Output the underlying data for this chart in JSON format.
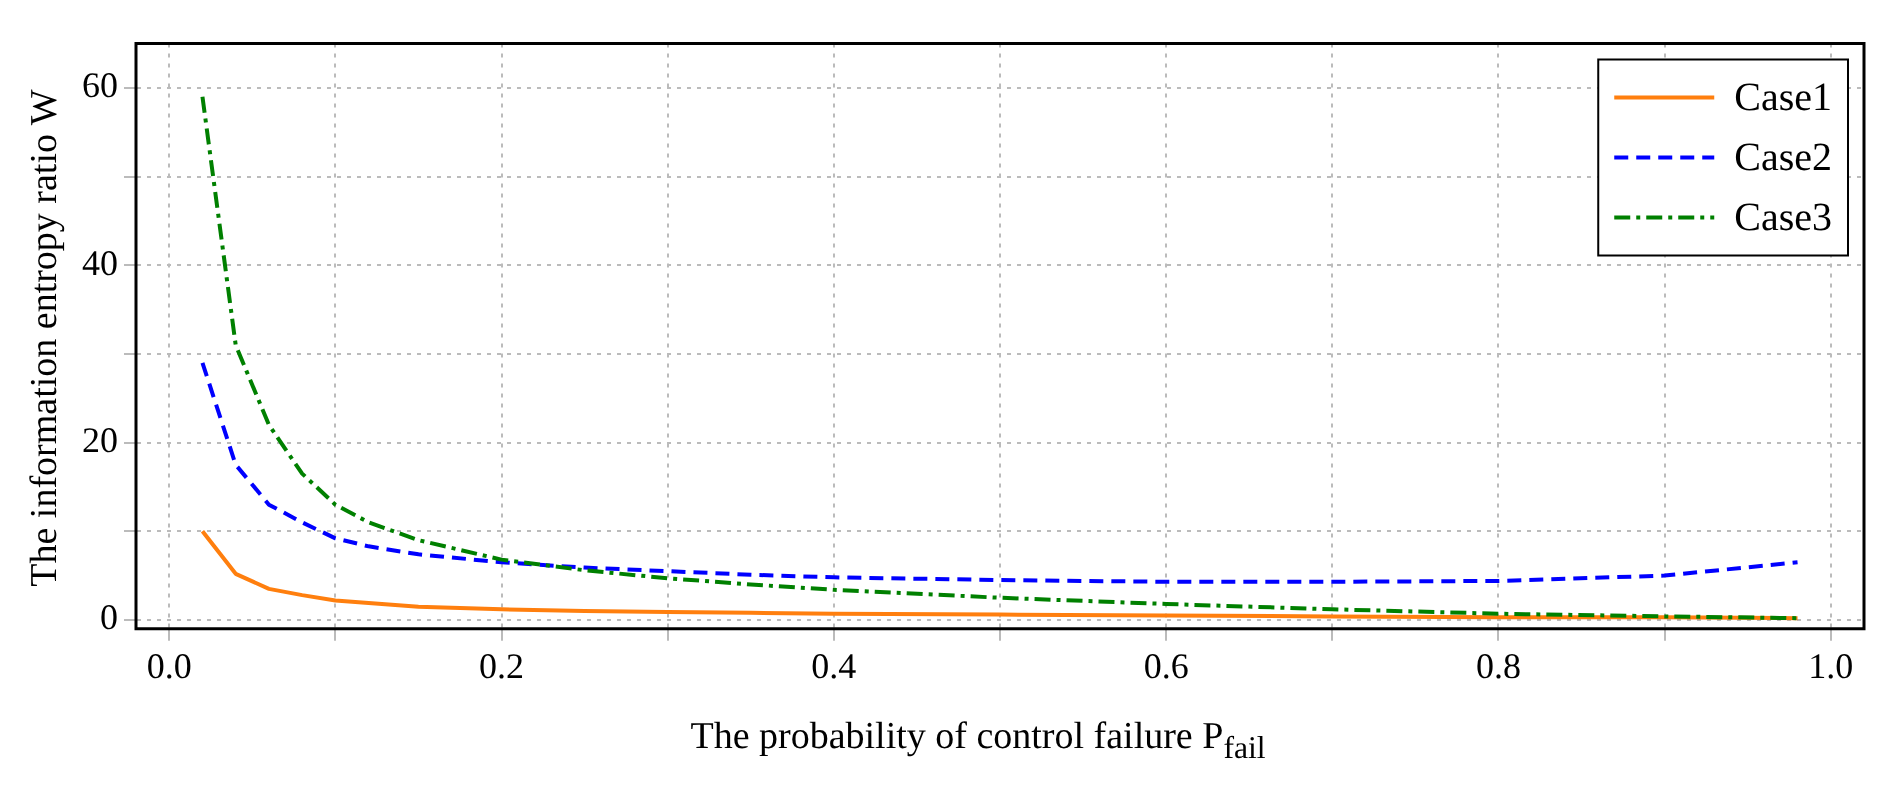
{
  "chart_data": {
    "type": "line",
    "xlabel": "The probability of control failure P$_{fail}$",
    "ylabel": "The information entropy ratio W",
    "x": [
      0.02,
      0.04,
      0.06,
      0.08,
      0.1,
      0.12,
      0.15,
      0.2,
      0.25,
      0.3,
      0.35,
      0.4,
      0.5,
      0.6,
      0.7,
      0.8,
      0.9,
      0.98
    ],
    "series": [
      {
        "name": "Case1",
        "color": "#ff7f0e",
        "line_style": "solid",
        "values": [
          10,
          5.2,
          3.5,
          2.8,
          2.2,
          1.9,
          1.5,
          1.2,
          1,
          0.9,
          0.8,
          0.7,
          0.6,
          0.5,
          0.4,
          0.3,
          0.3,
          0.2
        ]
      },
      {
        "name": "Case2",
        "color": "#0000ff",
        "line_style": "dashed",
        "values": [
          29,
          17.5,
          13,
          11,
          9.2,
          8.3,
          7.4,
          6.5,
          5.9,
          5.5,
          5.1,
          4.8,
          4.5,
          4.3,
          4.3,
          4.4,
          5,
          6.5
        ]
      },
      {
        "name": "Case3",
        "color": "#008000",
        "line_style": "dashdot",
        "values": [
          59,
          31,
          22,
          16.5,
          13,
          11,
          9,
          6.8,
          5.6,
          4.7,
          4,
          3.4,
          2.5,
          1.8,
          1.2,
          0.7,
          0.4,
          0.2
        ]
      }
    ],
    "xlim": [
      -0.02,
      1.02
    ],
    "ylim": [
      -1,
      65
    ],
    "xticks": [
      {
        "value": 0,
        "label": "0.0"
      },
      {
        "value": 0.1,
        "label": null
      },
      {
        "value": 0.2,
        "label": "0.2"
      },
      {
        "value": 0.3,
        "label": null
      },
      {
        "value": 0.4,
        "label": "0.4"
      },
      {
        "value": 0.5,
        "label": null
      },
      {
        "value": 0.6,
        "label": "0.6"
      },
      {
        "value": 0.7,
        "label": null
      },
      {
        "value": 0.8,
        "label": "0.8"
      },
      {
        "value": 0.9,
        "label": null
      },
      {
        "value": 1,
        "label": "1.0"
      }
    ],
    "yticks": [
      0,
      {
        "value": 10,
        "label": null
      },
      20,
      {
        "value": 30,
        "label": null
      },
      40,
      {
        "value": 50,
        "label": null
      },
      60
    ],
    "grid": true,
    "legend": "top right",
    "marker": "none"
  }
}
